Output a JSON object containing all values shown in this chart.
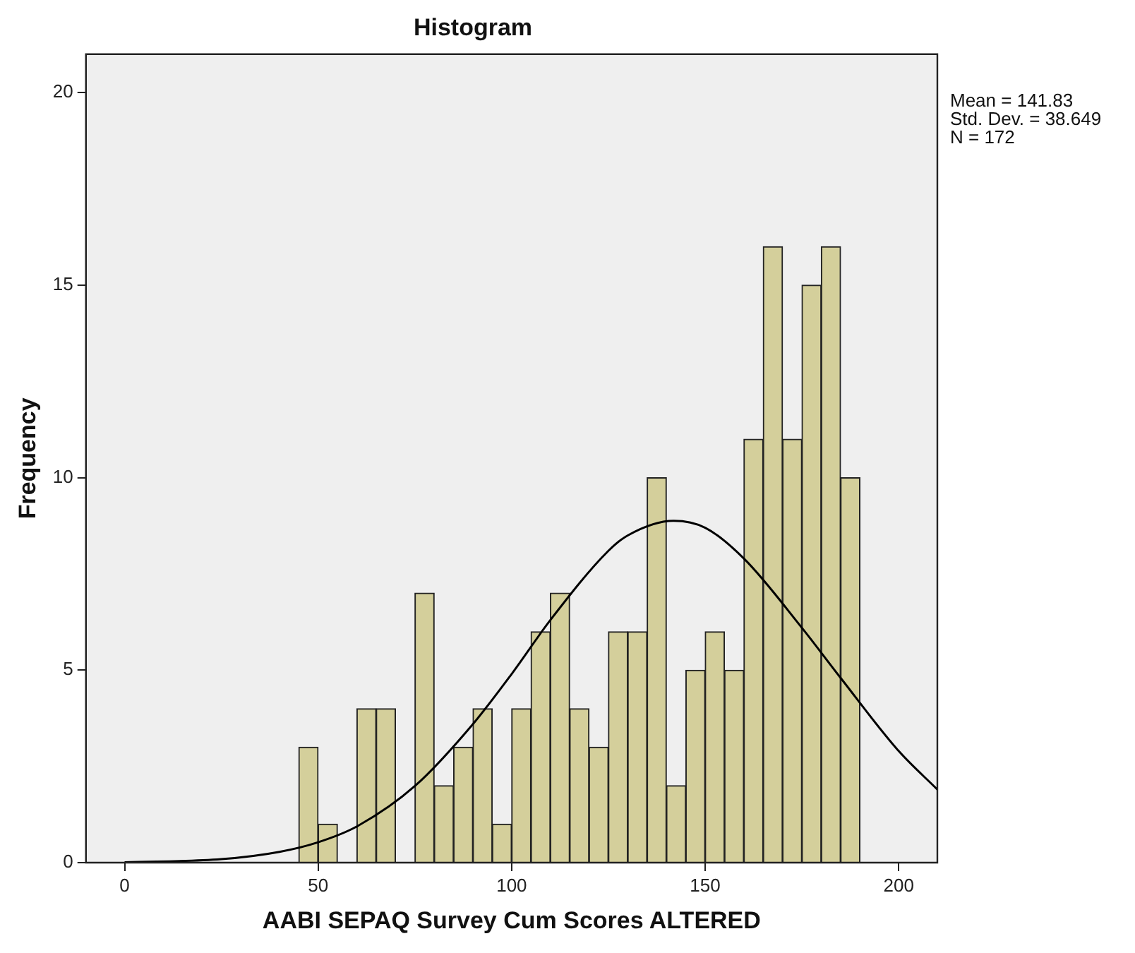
{
  "chart_data": {
    "type": "histogram",
    "title": "Histogram",
    "xlabel": "AABI SEPAQ Survey Cum Scores ALTERED",
    "ylabel": "Frequency",
    "bins": [
      45,
      50,
      55,
      60,
      65,
      70,
      75,
      80,
      85,
      90,
      95,
      100,
      105,
      110,
      115,
      120,
      125,
      130,
      135,
      140,
      145,
      150,
      155,
      160,
      165,
      170,
      175,
      180,
      185,
      190
    ],
    "values": [
      3,
      1,
      0,
      4,
      4,
      0,
      7,
      2,
      3,
      4,
      1,
      4,
      6,
      7,
      4,
      3,
      6,
      6,
      10,
      2,
      5,
      6,
      5,
      11,
      16,
      11,
      15,
      16,
      10
    ],
    "color": "#d4cf9b",
    "series": [
      {
        "type": "line",
        "color": "#000000",
        "x": [
          0,
          25,
          40,
          50,
          60,
          75,
          90,
          100,
          110,
          125,
          130,
          141.83,
          150,
          160,
          175,
          185,
          200,
          210
        ],
        "values": [
          0.01,
          0.09,
          0.28,
          0.53,
          0.94,
          1.99,
          3.6,
          4.9,
          6.3,
          8.1,
          8.5,
          8.88,
          8.7,
          7.9,
          6.1,
          4.8,
          2.9,
          1.9
        ]
      }
    ],
    "xlim": [
      -10,
      210
    ],
    "xticks": [
      0,
      50,
      100,
      150,
      200
    ],
    "ylim": [
      0,
      21
    ],
    "yticks": [
      0,
      5,
      10,
      15,
      20
    ],
    "grid": false,
    "legend": false,
    "annotations": [
      "Mean = 141.83",
      "Std. Dev. = 38.649",
      "N = 172"
    ]
  }
}
